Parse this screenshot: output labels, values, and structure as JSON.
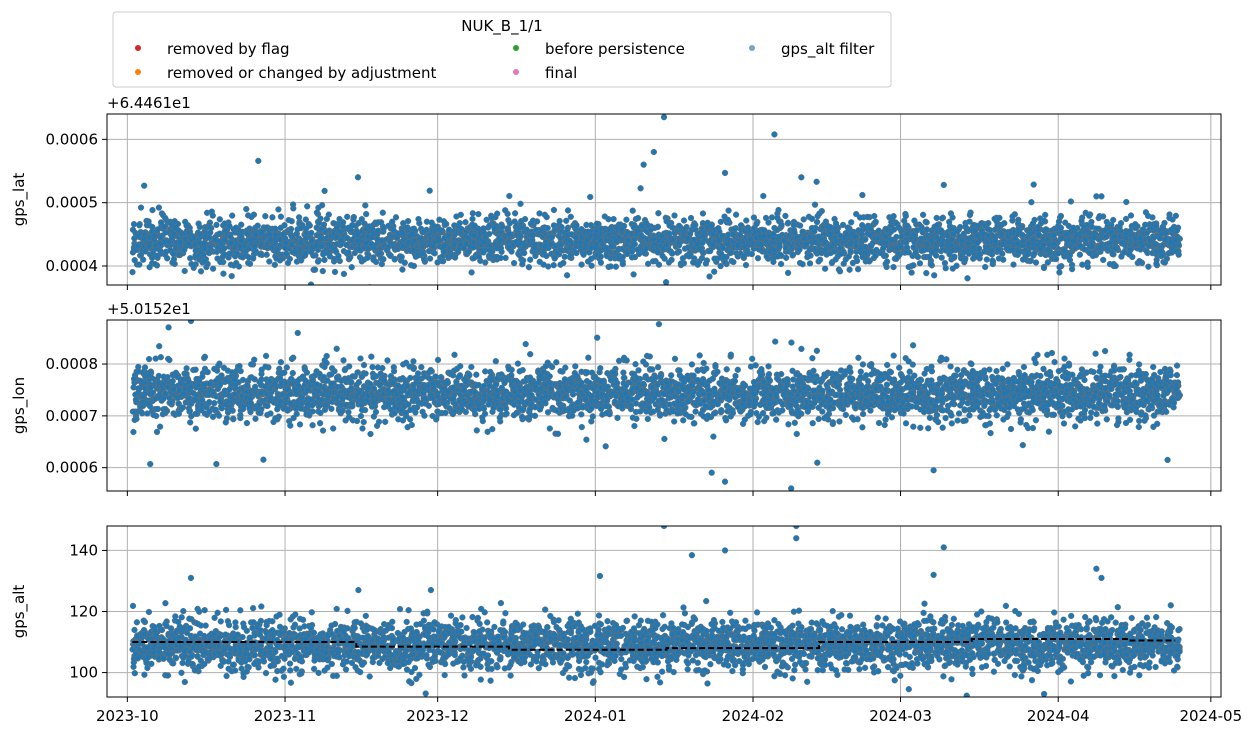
{
  "legend": {
    "title": "NUK_B_1/1",
    "placement": "top-left, above plots",
    "entries": [
      {
        "label": "removed by flag",
        "color": "#d62728"
      },
      {
        "label": "removed or changed by adjustment",
        "color": "#ff7f0e"
      },
      {
        "label": "before persistence",
        "color": "#2ca02c"
      },
      {
        "label": "final",
        "color": "#e377c2"
      },
      {
        "label": "gps_alt filter",
        "color": "#6fa8d0"
      }
    ]
  },
  "chart_data": [
    {
      "type": "scatter",
      "ylabel": "gps_lat",
      "offset_label": "+6.4461e1",
      "y_offset": 64.461,
      "ylim": [
        0.00037,
        0.00064
      ],
      "yticks": [
        0.0004,
        0.0005,
        0.0006
      ],
      "ytick_labels": [
        "0.0004",
        "0.0005",
        "0.0006"
      ],
      "grid": true,
      "series_color": "#1f77b4",
      "points_per_day": 18,
      "center": 0.00044,
      "spread": 1.8e-05,
      "outliers": [
        {
          "x": "2024-01-14",
          "y": 0.000635
        },
        {
          "x": "2024-01-12",
          "y": 0.00058
        },
        {
          "x": "2024-01-10",
          "y": 0.00056
        },
        {
          "x": "2024-01-26",
          "y": 0.000547
        },
        {
          "x": "2024-02-10",
          "y": 0.00054
        },
        {
          "x": "2024-02-13",
          "y": 0.000533
        },
        {
          "x": "2024-03-09",
          "y": 0.000528
        },
        {
          "x": "2024-04-08",
          "y": 0.00051
        },
        {
          "x": "2024-04-09",
          "y": 0.00051
        },
        {
          "x": "2024-02-22",
          "y": 0.000512
        }
      ]
    },
    {
      "type": "scatter",
      "ylabel": "gps_lon",
      "offset_label": "+5.0152e1",
      "y_offset": 50.152,
      "ylim": [
        0.000555,
        0.000885
      ],
      "yticks": [
        0.0006,
        0.0007,
        0.0008
      ],
      "ytick_labels": [
        "0.0006",
        "0.0007",
        "0.0008"
      ],
      "grid": true,
      "series_color": "#1f77b4",
      "points_per_day": 18,
      "center": 0.000745,
      "spread": 2.6e-05,
      "outliers": [
        {
          "x": "2023-10-13",
          "y": 0.000883
        },
        {
          "x": "2024-01-13",
          "y": 0.000877
        },
        {
          "x": "2024-02-08",
          "y": 0.00056
        },
        {
          "x": "2024-01-26",
          "y": 0.000573
        },
        {
          "x": "2023-10-05",
          "y": 0.000607
        },
        {
          "x": "2023-10-18",
          "y": 0.000607
        },
        {
          "x": "2023-11-03",
          "y": 0.00086
        },
        {
          "x": "2024-04-22",
          "y": 0.000615
        },
        {
          "x": "2024-03-07",
          "y": 0.000595
        }
      ]
    },
    {
      "type": "scatter",
      "ylabel": "gps_alt",
      "ylim": [
        92,
        148
      ],
      "yticks": [
        100,
        120,
        140
      ],
      "ytick_labels": [
        "100",
        "120",
        "140"
      ],
      "grid": true,
      "series_color": "#1f77b4",
      "points_per_day": 18,
      "center": 109,
      "spread": 4.2,
      "outliers": [
        {
          "x": "2024-01-14",
          "y": 148
        },
        {
          "x": "2024-02-09",
          "y": 148
        },
        {
          "x": "2024-02-09",
          "y": 144
        },
        {
          "x": "2024-01-26",
          "y": 140
        },
        {
          "x": "2024-03-09",
          "y": 141
        },
        {
          "x": "2024-04-08",
          "y": 134
        },
        {
          "x": "2024-04-09",
          "y": 131
        },
        {
          "x": "2023-10-13",
          "y": 131
        },
        {
          "x": "2024-03-07",
          "y": 132
        }
      ],
      "step_line": {
        "color": "#000000",
        "style": "dashed",
        "points": [
          {
            "x": "2023-10-02",
            "y": 110
          },
          {
            "x": "2023-11-15",
            "y": 110
          },
          {
            "x": "2023-11-15",
            "y": 108.5
          },
          {
            "x": "2023-12-15",
            "y": 108.5
          },
          {
            "x": "2023-12-15",
            "y": 107.5
          },
          {
            "x": "2024-01-15",
            "y": 107.5
          },
          {
            "x": "2024-01-15",
            "y": 108
          },
          {
            "x": "2024-02-14",
            "y": 108
          },
          {
            "x": "2024-02-14",
            "y": 110
          },
          {
            "x": "2024-03-15",
            "y": 110
          },
          {
            "x": "2024-03-15",
            "y": 111
          },
          {
            "x": "2024-04-15",
            "y": 111
          },
          {
            "x": "2024-04-15",
            "y": 110.5
          },
          {
            "x": "2024-04-24",
            "y": 110.5
          }
        ]
      }
    }
  ],
  "x_axis": {
    "start": "2023-10-02",
    "end": "2024-04-24",
    "xlim": [
      "2023-09-27",
      "2024-05-03"
    ],
    "ticks": [
      "2023-10-01",
      "2023-11-01",
      "2023-12-01",
      "2024-01-01",
      "2024-02-01",
      "2024-03-01",
      "2024-04-01",
      "2024-05-01"
    ],
    "tick_labels": [
      "2023-10",
      "2023-11",
      "2023-12",
      "2024-01",
      "2024-02",
      "2024-03",
      "2024-04",
      "2024-05"
    ]
  }
}
